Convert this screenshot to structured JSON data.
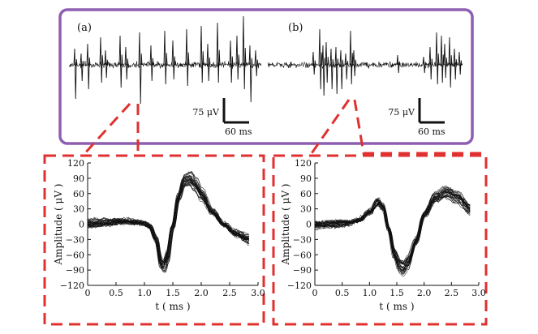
{
  "colors": {
    "top_frame": "#8e5fb0",
    "callout": "#e03030",
    "trace": "#111111",
    "background": "#ffffff"
  },
  "top_panels": [
    {
      "label": "(a)",
      "scale_y": "75 μV",
      "scale_x": "60 ms"
    },
    {
      "label": "(b)",
      "scale_y": "75 μV",
      "scale_x": "60 ms"
    }
  ],
  "chart_data": [
    {
      "type": "line",
      "panel": "a",
      "title": "",
      "xlabel": "t ( ms )",
      "ylabel": "Amplitude ( μV )",
      "xlim": [
        0,
        3.0
      ],
      "ylim": [
        -120,
        120
      ],
      "xticks": [
        "0",
        "0.5",
        "1.0",
        "1.5",
        "2.0",
        "2.5",
        "3.0"
      ],
      "yticks": [
        "−120",
        "−90",
        "−60",
        "−30",
        "0",
        "30",
        "60",
        "90",
        "120"
      ],
      "n_traces": 30,
      "mean_waveform": {
        "x": [
          0,
          0.3,
          0.6,
          0.9,
          1.0,
          1.1,
          1.2,
          1.3,
          1.35,
          1.4,
          1.5,
          1.6,
          1.7,
          1.8,
          1.9,
          2.0,
          2.2,
          2.4,
          2.6,
          2.85
        ],
        "y": [
          2,
          4,
          6,
          4,
          2,
          -5,
          -30,
          -82,
          -85,
          -68,
          -5,
          55,
          88,
          92,
          80,
          60,
          25,
          0,
          -18,
          -30
        ]
      }
    },
    {
      "type": "line",
      "panel": "b",
      "title": "",
      "xlabel": "t ( ms )",
      "ylabel": "Amplitude ( μV )",
      "xlim": [
        0,
        3.0
      ],
      "ylim": [
        -120,
        120
      ],
      "xticks": [
        "0",
        "0.5",
        "1.0",
        "1.5",
        "2.0",
        "2.5",
        "3.0"
      ],
      "yticks": [
        "−120",
        "−90",
        "−60",
        "−30",
        "0",
        "30",
        "60",
        "90",
        "120"
      ],
      "n_traces": 30,
      "mean_waveform": {
        "x": [
          0,
          0.3,
          0.6,
          0.8,
          1.0,
          1.15,
          1.25,
          1.35,
          1.45,
          1.55,
          1.62,
          1.7,
          1.85,
          2.0,
          2.2,
          2.4,
          2.6,
          2.85
        ],
        "y": [
          -2,
          0,
          2,
          8,
          25,
          45,
          35,
          -10,
          -60,
          -85,
          -90,
          -78,
          -35,
          20,
          55,
          65,
          55,
          30
        ]
      }
    }
  ]
}
